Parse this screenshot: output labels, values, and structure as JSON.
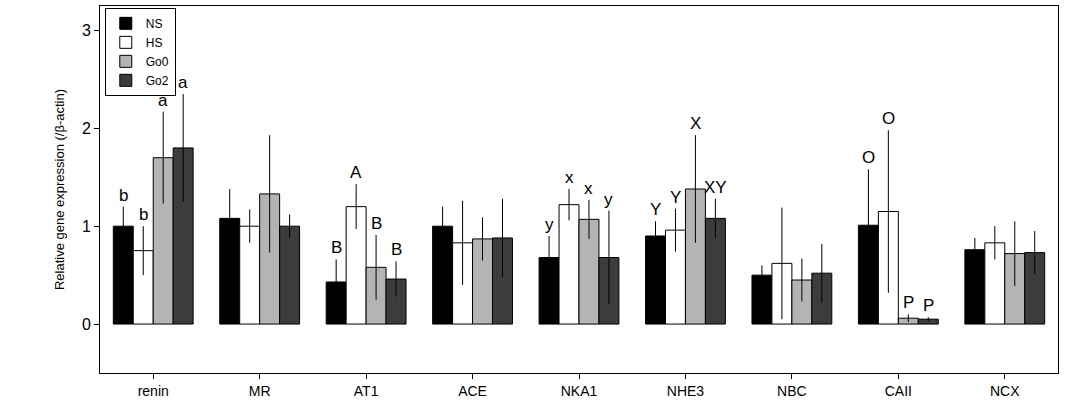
{
  "chart_data": {
    "type": "bar",
    "y_label": "Relative gene expression (/β-actin)",
    "categories": [
      "renin",
      "MR",
      "AT1",
      "ACE",
      "NKA1",
      "NHE3",
      "NBC",
      "CAII",
      "NCX"
    ],
    "ylim": [
      -0.5,
      3.25
    ],
    "yticks": [
      0,
      1,
      2,
      3
    ],
    "legend": "top-left",
    "series": [
      {
        "name": "NS",
        "color": "#000000",
        "values": [
          1.0,
          1.08,
          0.43,
          1.0,
          0.68,
          0.9,
          0.5,
          1.01,
          0.76
        ],
        "errors": [
          0.2,
          0.3,
          0.23,
          0.2,
          0.22,
          0.15,
          0.1,
          0.57,
          0.12
        ],
        "annotations": [
          "b",
          null,
          "B",
          null,
          "y",
          "Y",
          null,
          "O",
          null
        ]
      },
      {
        "name": "HS",
        "color": "#ffffff",
        "values": [
          0.75,
          1.0,
          1.2,
          0.83,
          1.22,
          0.96,
          0.62,
          1.15,
          0.83
        ],
        "errors": [
          0.25,
          0.17,
          0.23,
          0.43,
          0.16,
          0.22,
          0.57,
          0.83,
          0.17
        ],
        "annotations": [
          "b",
          null,
          "A",
          null,
          "x",
          "Y",
          null,
          "O",
          null
        ]
      },
      {
        "name": "Go0",
        "color": "#b4b4b4",
        "values": [
          1.7,
          1.33,
          0.58,
          0.87,
          1.07,
          1.38,
          0.45,
          0.06,
          0.72
        ],
        "errors": [
          0.47,
          0.6,
          0.33,
          0.22,
          0.2,
          0.55,
          0.22,
          0.04,
          0.33
        ],
        "annotations": [
          "a",
          null,
          "B",
          null,
          "x",
          "X",
          null,
          "P",
          null
        ]
      },
      {
        "name": "Go2",
        "color": "#3c3c3c",
        "values": [
          1.8,
          1.0,
          0.46,
          0.88,
          0.68,
          1.08,
          0.52,
          0.05,
          0.73
        ],
        "errors": [
          0.55,
          0.12,
          0.18,
          0.4,
          0.48,
          0.2,
          0.3,
          0.02,
          0.22
        ],
        "annotations": [
          "a",
          null,
          "B",
          null,
          "y",
          "XY",
          null,
          "P",
          null
        ]
      }
    ]
  }
}
